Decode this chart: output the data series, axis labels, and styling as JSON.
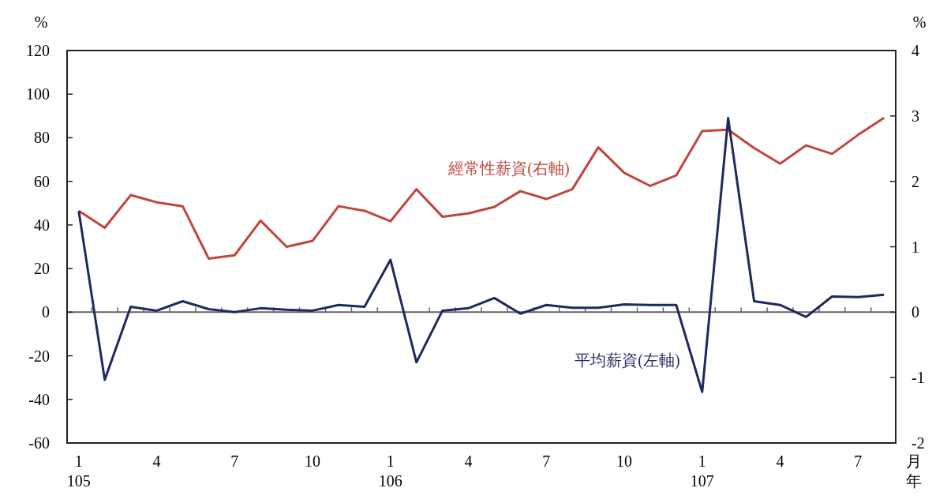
{
  "chart_data": {
    "type": "line",
    "ylabel": "%",
    "y2label": "%",
    "categories": [
      "1\n105",
      null,
      null,
      "4",
      null,
      null,
      "7",
      null,
      null,
      "10",
      null,
      null,
      "1\n106",
      null,
      null,
      "4",
      null,
      null,
      "7",
      null,
      null,
      "10",
      null,
      null,
      "1\n107",
      null,
      null,
      "4",
      null,
      null,
      "7",
      null
    ],
    "series": [
      {
        "name": "經常性薪資(右軸)",
        "color": "#c0463c",
        "axis": "y2",
        "values": [
          1.55,
          1.29,
          1.79,
          1.68,
          1.62,
          0.82,
          0.87,
          1.4,
          1.0,
          1.09,
          1.62,
          1.55,
          1.39,
          1.88,
          1.46,
          1.51,
          1.61,
          1.85,
          1.73,
          1.88,
          2.52,
          2.13,
          1.93,
          2.09,
          2.77,
          2.79,
          2.51,
          2.27,
          2.55,
          2.42,
          2.71,
          2.97
        ]
      },
      {
        "name": "平均薪資(左軸)",
        "color": "#1f2a5c",
        "values": [
          46.4,
          -31,
          2.5,
          0.7,
          5,
          1.4,
          0,
          1.8,
          1.1,
          0.7,
          3.3,
          2.5,
          24,
          -23,
          0.7,
          1.8,
          6.5,
          -0.7,
          3.3,
          2,
          2,
          3.6,
          3.3,
          3.3,
          -36.6,
          89,
          5,
          3.3,
          -2.2,
          7.2,
          6.9,
          8
        ]
      }
    ],
    "ylim": [
      -60,
      120
    ],
    "yticks": [
      -60,
      -40,
      -20,
      0,
      20,
      40,
      60,
      80,
      100,
      120
    ],
    "y2lim": [
      -2,
      4
    ],
    "y2ticks": [
      -2,
      -1,
      0,
      1,
      2,
      3,
      4
    ],
    "line_style": "solid",
    "annotations": [
      "月",
      "年"
    ]
  }
}
